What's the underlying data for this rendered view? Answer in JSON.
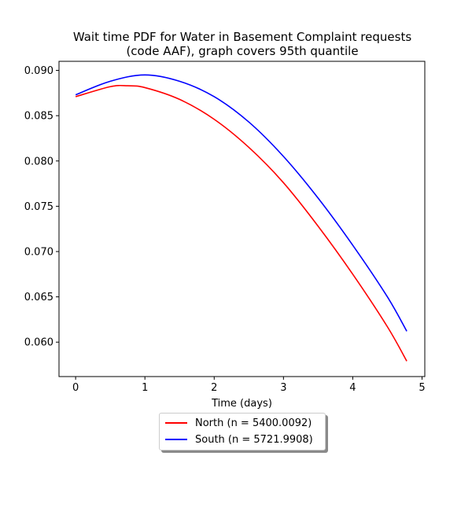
{
  "chart_data": {
    "type": "line",
    "title": [
      "Wait time PDF for Water in Basement Complaint  requests",
      "(code AAF), graph covers 95th quantile"
    ],
    "xlabel": "Time (days)",
    "ylabel": "",
    "xlim": [
      -0.24,
      5.04
    ],
    "ylim": [
      0.0562,
      0.091
    ],
    "x_ticks": [
      0,
      1,
      2,
      3,
      4,
      5
    ],
    "y_ticks": [
      0.06,
      0.065,
      0.07,
      0.075,
      0.08,
      0.085,
      0.09
    ],
    "y_tick_labels": [
      "0.060",
      "0.065",
      "0.070",
      "0.075",
      "0.080",
      "0.085",
      "0.090"
    ],
    "grid": false,
    "legend_placement": "below",
    "series": [
      {
        "name": "North (n = 5400.0092)",
        "color": "#ff0000",
        "x": [
          0,
          0.5,
          0.75,
          1.0,
          1.5,
          2.0,
          2.5,
          3.0,
          3.5,
          4.0,
          4.5,
          4.78
        ],
        "y": [
          0.0871,
          0.0882,
          0.0883,
          0.0881,
          0.0868,
          0.0846,
          0.0815,
          0.0776,
          0.0728,
          0.0675,
          0.0617,
          0.0579
        ]
      },
      {
        "name": "South (n = 5721.9908)",
        "color": "#0000ff",
        "x": [
          0,
          0.5,
          1.0,
          1.5,
          2.0,
          2.5,
          3.0,
          3.5,
          4.0,
          4.5,
          4.78
        ],
        "y": [
          0.0873,
          0.0888,
          0.0895,
          0.0888,
          0.0871,
          0.0843,
          0.0805,
          0.0759,
          0.0707,
          0.065,
          0.0612
        ]
      }
    ]
  }
}
